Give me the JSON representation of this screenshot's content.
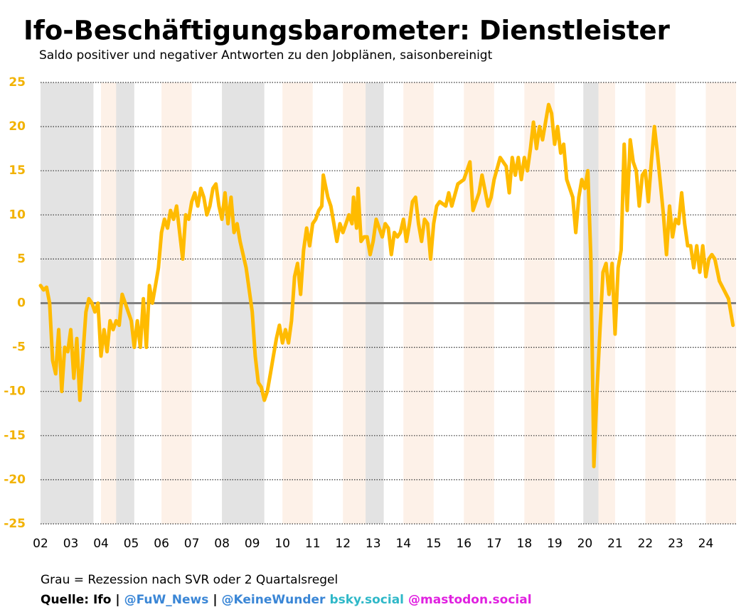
{
  "chart_data": {
    "type": "line",
    "title": "Ifo-Beschäftigungsbarometer: Dienstleister",
    "subtitle": "Saldo positiver und negativer Antworten zu den Jobplänen, saisonbereinigt",
    "note": "Grau = Rezession nach SVR oder 2 Quartalsregel",
    "source": [
      {
        "text": "Quelle: Ifo",
        "color": "#000000"
      },
      {
        "text": "|",
        "color": "#000000"
      },
      {
        "text": "@FuW_News",
        "color": "#3a86d6"
      },
      {
        "text": "|",
        "color": "#000000"
      },
      {
        "text": "@KeineWunder",
        "color": "#3a86d6"
      },
      {
        "text": "bsky.social",
        "color": "#2fb8c8"
      },
      {
        "text": "@mastodon.social",
        "color": "#e020e0"
      }
    ],
    "color": "#ffbb00",
    "grid": true,
    "recessions": [
      [
        2002,
        2003.75
      ],
      [
        2004.5,
        2005.1
      ],
      [
        2008,
        2009.4
      ],
      [
        2012.75,
        2013.35
      ],
      [
        2019.95,
        2020.45
      ]
    ],
    "xlim": [
      2002,
      2025
    ],
    "xticks": [
      {
        "value": 2002,
        "label": "02"
      },
      {
        "value": 2003,
        "label": "03"
      },
      {
        "value": 2004,
        "label": "04"
      },
      {
        "value": 2005,
        "label": "05"
      },
      {
        "value": 2006,
        "label": "06"
      },
      {
        "value": 2007,
        "label": "07"
      },
      {
        "value": 2008,
        "label": "08"
      },
      {
        "value": 2009,
        "label": "09"
      },
      {
        "value": 2010,
        "label": "10"
      },
      {
        "value": 2011,
        "label": "11"
      },
      {
        "value": 2012,
        "label": "12"
      },
      {
        "value": 2013,
        "label": "13"
      },
      {
        "value": 2014,
        "label": "14"
      },
      {
        "value": 2015,
        "label": "15"
      },
      {
        "value": 2016,
        "label": "16"
      },
      {
        "value": 2017,
        "label": "17"
      },
      {
        "value": 2018,
        "label": "18"
      },
      {
        "value": 2019,
        "label": "19"
      },
      {
        "value": 2020,
        "label": "20"
      },
      {
        "value": 2021,
        "label": "21"
      },
      {
        "value": 2022,
        "label": "22"
      },
      {
        "value": 2023,
        "label": "23"
      },
      {
        "value": 2024,
        "label": "24"
      }
    ],
    "ylim": [
      -25,
      25
    ],
    "yticks": [
      -25,
      -20,
      -15,
      -10,
      -5,
      0,
      5,
      10,
      15,
      20,
      25
    ],
    "x": [
      2002.0,
      2002.1,
      2002.2,
      2002.3,
      2002.4,
      2002.5,
      2002.6,
      2002.7,
      2002.8,
      2002.9,
      2003.0,
      2003.1,
      2003.2,
      2003.3,
      2003.4,
      2003.5,
      2003.6,
      2003.7,
      2003.8,
      2003.9,
      2004.0,
      2004.1,
      2004.2,
      2004.3,
      2004.4,
      2004.5,
      2004.6,
      2004.7,
      2004.8,
      2004.9,
      2005.0,
      2005.1,
      2005.2,
      2005.3,
      2005.4,
      2005.5,
      2005.6,
      2005.7,
      2005.8,
      2005.9,
      2006.0,
      2006.1,
      2006.2,
      2006.3,
      2006.4,
      2006.5,
      2006.6,
      2006.7,
      2006.8,
      2006.9,
      2007.0,
      2007.1,
      2007.2,
      2007.3,
      2007.4,
      2007.5,
      2007.6,
      2007.7,
      2007.8,
      2007.9,
      2008.0,
      2008.1,
      2008.2,
      2008.3,
      2008.4,
      2008.5,
      2008.6,
      2008.8,
      2009.0,
      2009.1,
      2009.2,
      2009.3,
      2009.4,
      2009.5,
      2009.6,
      2009.7,
      2009.8,
      2009.9,
      2010.0,
      2010.1,
      2010.2,
      2010.3,
      2010.4,
      2010.5,
      2010.6,
      2010.7,
      2010.8,
      2010.9,
      2011.0,
      2011.1,
      2011.2,
      2011.3,
      2011.35,
      2011.5,
      2011.6,
      2011.7,
      2011.8,
      2011.9,
      2012.0,
      2012.1,
      2012.2,
      2012.3,
      2012.35,
      2012.45,
      2012.5,
      2012.6,
      2012.7,
      2012.8,
      2012.9,
      2013.0,
      2013.1,
      2013.2,
      2013.3,
      2013.4,
      2013.5,
      2013.6,
      2013.7,
      2013.8,
      2013.9,
      2014.0,
      2014.1,
      2014.2,
      2014.3,
      2014.4,
      2014.5,
      2014.6,
      2014.7,
      2014.8,
      2014.9,
      2015.0,
      2015.1,
      2015.2,
      2015.4,
      2015.5,
      2015.6,
      2015.8,
      2016.0,
      2016.1,
      2016.2,
      2016.3,
      2016.5,
      2016.6,
      2016.8,
      2016.9,
      2017.0,
      2017.2,
      2017.4,
      2017.5,
      2017.6,
      2017.7,
      2017.8,
      2017.9,
      2018.0,
      2018.1,
      2018.2,
      2018.3,
      2018.4,
      2018.5,
      2018.6,
      2018.7,
      2018.8,
      2018.9,
      2019.0,
      2019.1,
      2019.2,
      2019.3,
      2019.4,
      2019.5,
      2019.6,
      2019.7,
      2019.8,
      2019.9,
      2020.0,
      2020.1,
      2020.2,
      2020.3,
      2020.4,
      2020.5,
      2020.6,
      2020.7,
      2020.8,
      2020.9,
      2021.0,
      2021.1,
      2021.2,
      2021.3,
      2021.4,
      2021.5,
      2021.6,
      2021.7,
      2021.8,
      2021.9,
      2022.0,
      2022.1,
      2022.2,
      2022.3,
      2022.4,
      2022.5,
      2022.6,
      2022.7,
      2022.8,
      2022.9,
      2023.0,
      2023.1,
      2023.2,
      2023.3,
      2023.4,
      2023.5,
      2023.6,
      2023.7,
      2023.8,
      2023.9,
      2024.0,
      2024.1,
      2024.2,
      2024.3,
      2024.45,
      2024.6,
      2024.75,
      2024.9
    ],
    "values": [
      2,
      1.5,
      1.8,
      0,
      -6.5,
      -8,
      -3,
      -10,
      -5,
      -5.5,
      -3,
      -8.5,
      -4,
      -11,
      -6,
      -1,
      0.5,
      0,
      -1,
      0,
      -6,
      -3,
      -5.5,
      -2,
      -3,
      -2,
      -2.5,
      1,
      0,
      -1,
      -2,
      -5,
      -2,
      -5,
      0.5,
      -5,
      2,
      0,
      2,
      4,
      8,
      9.5,
      8.5,
      10.5,
      9.5,
      11,
      8,
      5,
      10,
      9.5,
      11.5,
      12.5,
      11,
      13,
      12,
      10,
      11,
      13,
      13.5,
      11,
      9.5,
      12.5,
      9,
      12,
      8,
      9,
      7,
      4,
      -1,
      -6,
      -9,
      -9.5,
      -11,
      -10,
      -8,
      -6,
      -4,
      -2.5,
      -4.5,
      -3,
      -4.5,
      -2,
      3,
      4.5,
      1,
      6,
      8.5,
      6.5,
      9,
      9.5,
      10.5,
      11,
      14.5,
      12,
      11,
      9,
      7,
      9,
      8,
      9,
      10,
      9,
      12,
      8.5,
      13,
      7,
      7.5,
      7.5,
      5.5,
      7,
      9.5,
      8.5,
      7.5,
      9,
      8.5,
      5.5,
      8,
      7.5,
      8,
      9.5,
      7,
      9,
      11.5,
      12,
      9,
      7,
      9.5,
      9,
      5,
      9,
      11,
      11.5,
      11,
      12.5,
      11,
      13.5,
      14,
      15,
      16,
      10.5,
      12.5,
      14.5,
      11,
      12,
      14,
      16.5,
      15.5,
      12.5,
      16.5,
      14.5,
      16.5,
      14,
      16.5,
      15,
      17.5,
      20.5,
      17.5,
      20,
      18.5,
      20.5,
      22.5,
      21.5,
      18,
      20,
      17,
      18,
      14,
      13,
      12,
      8,
      12,
      14,
      13,
      15,
      5,
      -18.5,
      -10,
      -3,
      3.5,
      4.5,
      1,
      4.5,
      -3.5,
      4,
      6,
      18,
      10.5,
      18.5,
      16,
      15,
      11,
      14.5,
      15,
      11.5,
      16,
      20,
      17,
      13.5,
      10,
      5.5,
      11,
      7.5,
      9.5,
      9,
      12.5,
      9,
      6.5,
      6.5,
      4,
      6.5,
      3.5,
      6.5,
      3,
      5,
      5.5,
      5,
      2.5,
      1.5,
      0.5,
      -2.5
    ]
  }
}
